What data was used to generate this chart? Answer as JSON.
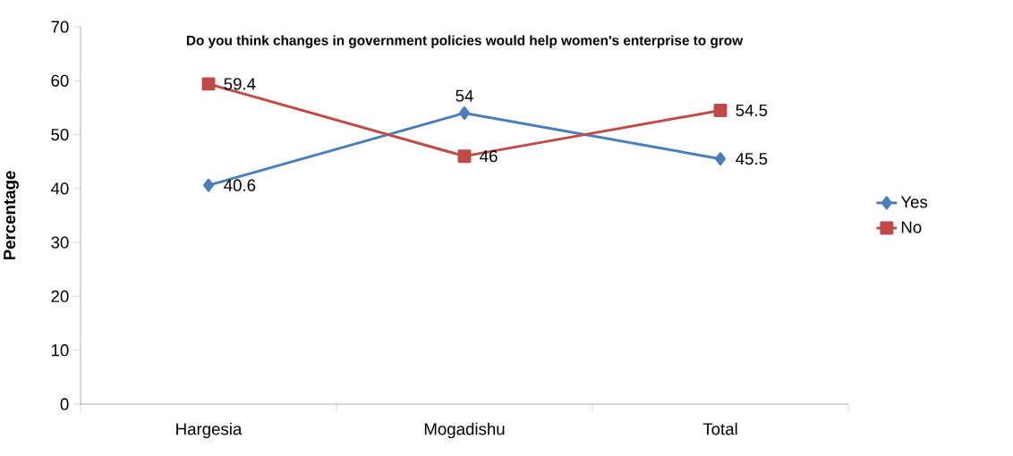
{
  "chart_data": {
    "type": "line",
    "title": "Do you think changes in government policies would help women's enterprise to grow",
    "ylabel": "Percentage",
    "categories": [
      "Hargesia",
      "Mogadishu",
      "Total"
    ],
    "series": [
      {
        "name": "Yes",
        "color": "#4a7ebb",
        "marker": "diamond",
        "values": [
          40.6,
          54,
          45.5
        ]
      },
      {
        "name": "No",
        "color": "#be4b48",
        "marker": "square",
        "values": [
          59.4,
          46,
          54.5
        ]
      }
    ],
    "ylim": [
      0,
      70
    ],
    "yticks": [
      0,
      10,
      20,
      30,
      40,
      50,
      60,
      70
    ],
    "data_labels": true,
    "legend": "right",
    "grid": false
  }
}
